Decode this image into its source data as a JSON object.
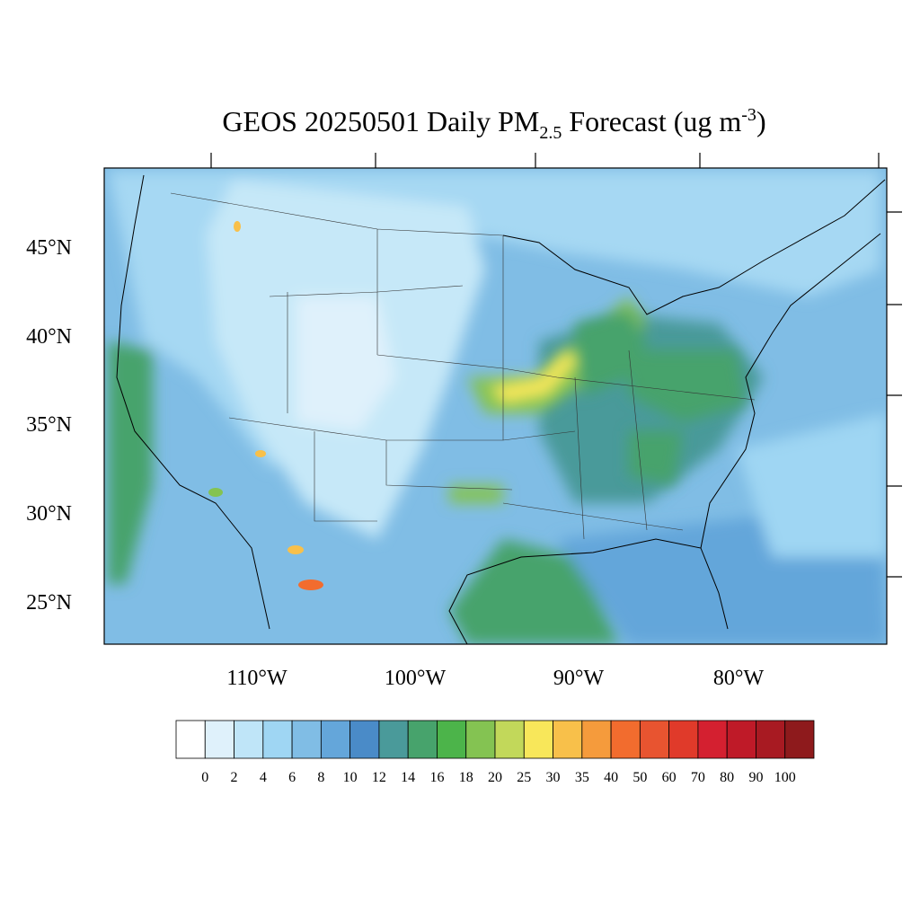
{
  "map": {
    "title": {
      "main": "GEOS 20250501 Daily PM",
      "subscript": "2.5",
      "middle": " Forecast (ug m",
      "superscript": "-3",
      "end": ")"
    },
    "latitude_labels": [
      "45°N",
      "40°N",
      "35°N",
      "30°N",
      "25°N"
    ],
    "longitude_labels": [
      "110°W",
      "100°W",
      "90°W",
      "80°W"
    ],
    "colorbar": {
      "levels": [
        0,
        2,
        4,
        6,
        8,
        10,
        12,
        14,
        16,
        18,
        20,
        25,
        30,
        35,
        40,
        50,
        60,
        70,
        80,
        90,
        100
      ],
      "colors": [
        "#ffffff",
        "#dff1fb",
        "#bfe5f8",
        "#9fd6f3",
        "#80bde5",
        "#64a6da",
        "#4a8bc8",
        "#4a9a9a",
        "#47a36c",
        "#4cb44a",
        "#84c352",
        "#c2d85a",
        "#f8e75a",
        "#f8c04a",
        "#f59b3c",
        "#f26c2e",
        "#e85430",
        "#e03a2a",
        "#d42030",
        "#bf1a28",
        "#a81a22",
        "#8e1a1c"
      ]
    }
  }
}
